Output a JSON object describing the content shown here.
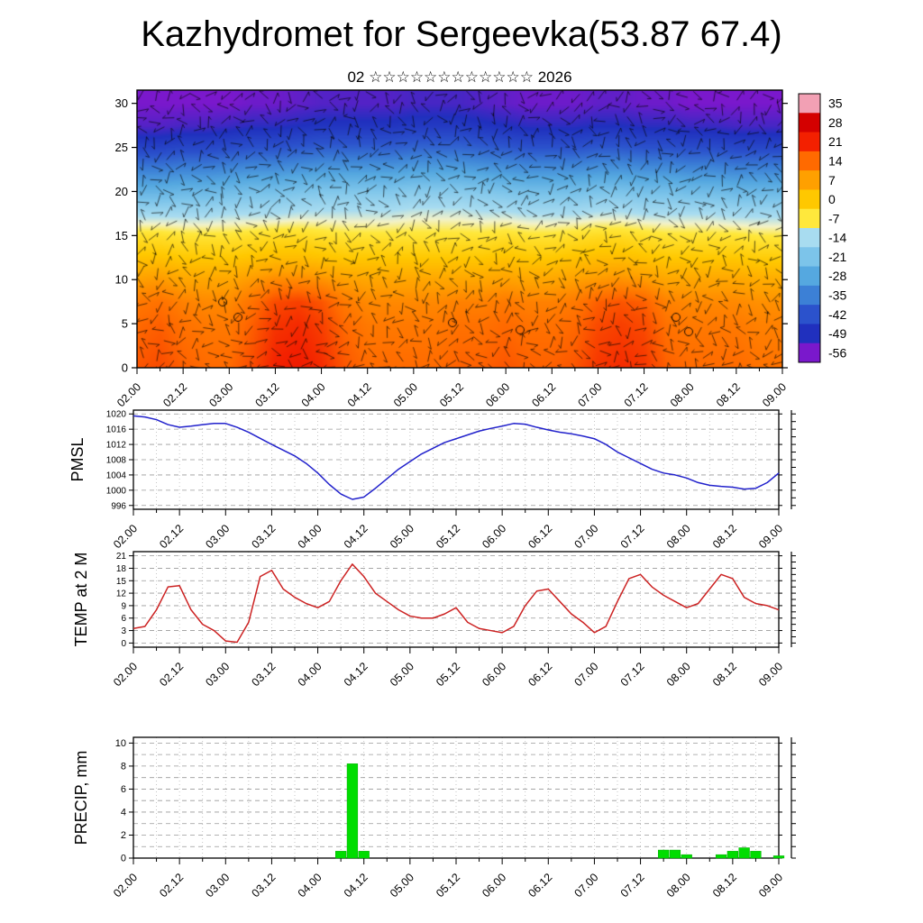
{
  "title": "Kazhydromet for Sergeevka(53.87 67.4)",
  "subtitle": "02 ☆☆☆☆☆☆☆☆☆☆☆☆ 2026",
  "time_axis": {
    "labels": [
      "02.00",
      "02.12",
      "03.00",
      "03.12",
      "04.00",
      "04.12",
      "05.00",
      "05.12",
      "06.00",
      "06.12",
      "07.00",
      "07.12",
      "08.00",
      "08.12",
      "09.00"
    ],
    "hours_span": 168,
    "label_step_hours": 12
  },
  "chart_data": [
    {
      "id": "cross_section",
      "type": "heatmap",
      "title": "",
      "ylabel": "",
      "yticks": [
        0,
        5,
        10,
        15,
        20,
        25,
        30
      ],
      "ylim": [
        0,
        30
      ],
      "levels": [
        0,
        2.5,
        5,
        7.5,
        10,
        12.5,
        15,
        17.5,
        20,
        22.5,
        25,
        27.5,
        30
      ],
      "x_step_hours": 6,
      "overlay": "wind-barbs",
      "values": [
        [
          16,
          17,
          15,
          14,
          14,
          17,
          21,
          22,
          20,
          16,
          14,
          14,
          14,
          14,
          15,
          15,
          16,
          15,
          15,
          16,
          19,
          20,
          19,
          15,
          14,
          14,
          14,
          13,
          13
        ],
        [
          15,
          16,
          14,
          13,
          13,
          16,
          20,
          21,
          19,
          15,
          13,
          13,
          13,
          13,
          14,
          14,
          15,
          14,
          14,
          15,
          18,
          19,
          18,
          14,
          13,
          13,
          13,
          12,
          12
        ],
        [
          14,
          15,
          13,
          12,
          12,
          15,
          19,
          20,
          18,
          14,
          12,
          12,
          12,
          12,
          13,
          13,
          14,
          13,
          13,
          14,
          17,
          18,
          17,
          13,
          12,
          12,
          12,
          11,
          11
        ],
        [
          12,
          13,
          11,
          10,
          10,
          13,
          17,
          18,
          16,
          12,
          10,
          10,
          10,
          10,
          11,
          11,
          12,
          11,
          11,
          12,
          15,
          16,
          15,
          11,
          10,
          10,
          10,
          9,
          9
        ],
        [
          7,
          8,
          6,
          6,
          6,
          8,
          10,
          10,
          9,
          7,
          6,
          6,
          6,
          6,
          6,
          6,
          7,
          6,
          6,
          7,
          8,
          9,
          8,
          6,
          6,
          6,
          6,
          5,
          5
        ],
        [
          1,
          1,
          0,
          0,
          0,
          1,
          2,
          2,
          1,
          0,
          0,
          0,
          0,
          0,
          0,
          0,
          1,
          0,
          0,
          1,
          2,
          2,
          1,
          0,
          0,
          0,
          0,
          -1,
          -1
        ],
        [
          -5,
          -5,
          -6,
          -6,
          -6,
          -5,
          -4,
          -4,
          -5,
          -6,
          -6,
          -6,
          -6,
          -6,
          -6,
          -6,
          -5,
          -6,
          -6,
          -5,
          -4,
          -4,
          -5,
          -6,
          -6,
          -6,
          -6,
          -7,
          -7
        ],
        [
          -15,
          -15,
          -15,
          -15,
          -14,
          -14,
          -14,
          -13,
          -13,
          -13,
          -13,
          -13,
          -12,
          -12,
          -12,
          -13,
          -13,
          -14,
          -14,
          -14,
          -13,
          -13,
          -14,
          -14,
          -14,
          -14,
          -15,
          -15,
          -15
        ],
        [
          -25,
          -25,
          -24,
          -24,
          -23,
          -22,
          -22,
          -21,
          -20,
          -20,
          -20,
          -20,
          -19,
          -19,
          -19,
          -20,
          -21,
          -22,
          -22,
          -22,
          -21,
          -21,
          -22,
          -22,
          -23,
          -23,
          -24,
          -24,
          -24
        ],
        [
          -35,
          -35,
          -34,
          -34,
          -33,
          -32,
          -32,
          -31,
          -30,
          -30,
          -30,
          -30,
          -29,
          -29,
          -29,
          -30,
          -31,
          -32,
          -32,
          -32,
          -31,
          -31,
          -32,
          -32,
          -33,
          -33,
          -34,
          -34,
          -34
        ],
        [
          -45,
          -45,
          -44,
          -44,
          -43,
          -42,
          -42,
          -41,
          -40,
          -40,
          -40,
          -40,
          -39,
          -39,
          -39,
          -40,
          -41,
          -42,
          -42,
          -42,
          -41,
          -41,
          -42,
          -42,
          -43,
          -43,
          -44,
          -44,
          -44
        ],
        [
          -53,
          -53,
          -52,
          -52,
          -51,
          -50,
          -50,
          -49,
          -48,
          -48,
          -48,
          -48,
          -47,
          -47,
          -47,
          -48,
          -49,
          -50,
          -50,
          -50,
          -49,
          -49,
          -50,
          -50,
          -51,
          -51,
          -52,
          -52,
          -52
        ],
        [
          -56,
          -56,
          -56,
          -56,
          -56,
          -55,
          -55,
          -54,
          -53,
          -53,
          -53,
          -53,
          -52,
          -52,
          -52,
          -53,
          -54,
          -55,
          -55,
          -55,
          -54,
          -54,
          -55,
          -55,
          -56,
          -56,
          -56,
          -56,
          -56
        ]
      ],
      "colorbar": {
        "ticks": [
          35,
          28,
          21,
          14,
          7,
          0,
          -7,
          -14,
          -21,
          -28,
          -35,
          -42,
          -49,
          -56
        ],
        "stops": [
          [
            35,
            "#f2a0b4"
          ],
          [
            28,
            "#d40000"
          ],
          [
            21,
            "#f32000"
          ],
          [
            14,
            "#ff6a00"
          ],
          [
            7,
            "#ffa000"
          ],
          [
            0,
            "#ffc800"
          ],
          [
            -7,
            "#ffe83c"
          ],
          [
            -10.5,
            "#f2f2c8"
          ],
          [
            -14,
            "#a8dcf0"
          ],
          [
            -21,
            "#7cc4ea"
          ],
          [
            -28,
            "#55a8e0"
          ],
          [
            -35,
            "#3c80d6"
          ],
          [
            -42,
            "#2b52cc"
          ],
          [
            -49,
            "#2030be"
          ],
          [
            -56,
            "#7a18cc"
          ]
        ]
      }
    },
    {
      "id": "pmsl",
      "type": "line",
      "label": "PMSL",
      "color": "#2222cc",
      "ylim": [
        995,
        1021
      ],
      "yticks": [
        996,
        1000,
        1004,
        1008,
        1012,
        1016,
        1020
      ],
      "x_step_hours": 3,
      "values": [
        1019.5,
        1019.2,
        1018.5,
        1017.2,
        1016.5,
        1016.8,
        1017.2,
        1017.5,
        1017.5,
        1016.5,
        1015.2,
        1013.6,
        1012.0,
        1010.5,
        1009.0,
        1007.0,
        1004.5,
        1001.5,
        999.0,
        997.6,
        998.2,
        1000.5,
        1003.0,
        1005.5,
        1007.5,
        1009.5,
        1011.0,
        1012.5,
        1013.5,
        1014.5,
        1015.5,
        1016.2,
        1016.8,
        1017.5,
        1017.3,
        1016.5,
        1015.8,
        1015.2,
        1014.8,
        1014.2,
        1013.5,
        1012.0,
        1010.0,
        1008.5,
        1007.0,
        1005.5,
        1004.5,
        1004.0,
        1003.2,
        1002.0,
        1001.3,
        1001.0,
        1000.8,
        1000.3,
        1000.5,
        1002.0,
        1004.5
      ]
    },
    {
      "id": "temp2m",
      "type": "line",
      "label": "TEMP at 2 M",
      "color": "#cc2222",
      "ylim": [
        -1,
        22
      ],
      "yticks": [
        0,
        3,
        6,
        9,
        12,
        15,
        18,
        21
      ],
      "x_step_hours": 3,
      "values": [
        3.5,
        4.0,
        8.0,
        13.5,
        13.8,
        8.0,
        4.5,
        3.0,
        0.5,
        0.2,
        5.0,
        16.0,
        17.5,
        13.0,
        11.0,
        9.5,
        8.5,
        10.0,
        15.0,
        19.0,
        16.0,
        12.0,
        10.0,
        8.0,
        6.5,
        6.0,
        6.0,
        7.0,
        8.5,
        5.0,
        3.5,
        3.0,
        2.5,
        4.0,
        9.0,
        12.5,
        13.0,
        10.0,
        7.0,
        5.0,
        2.5,
        4.0,
        10.0,
        15.5,
        16.5,
        13.5,
        11.5,
        10.0,
        8.5,
        9.5,
        13.0,
        16.5,
        15.5,
        11.0,
        9.5,
        9.0,
        8.0
      ]
    },
    {
      "id": "precip",
      "type": "bar",
      "label": "PRECIP, mm",
      "color": "#00dd00",
      "ylim": [
        0,
        10.5
      ],
      "yticks": [
        0,
        2,
        4,
        6,
        8,
        10
      ],
      "x_step_hours": 3,
      "values": [
        0,
        0,
        0,
        0,
        0,
        0,
        0,
        0,
        0,
        0,
        0,
        0,
        0,
        0,
        0,
        0,
        0,
        0,
        0.6,
        8.2,
        0.6,
        0,
        0,
        0,
        0,
        0,
        0,
        0,
        0,
        0,
        0,
        0,
        0,
        0,
        0,
        0,
        0,
        0,
        0,
        0,
        0,
        0,
        0,
        0,
        0,
        0,
        0.7,
        0.7,
        0.3,
        0,
        0,
        0.3,
        0.6,
        0.9,
        0.6,
        0,
        0.2
      ]
    }
  ]
}
